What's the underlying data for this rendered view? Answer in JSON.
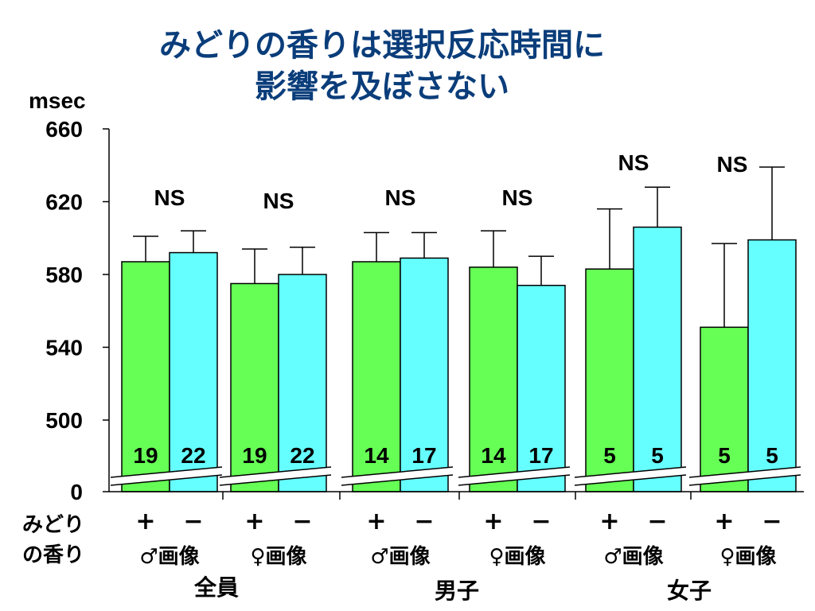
{
  "title_lines": [
    "みどりの香りは選択反応時間に",
    "影響を及ぼさない"
  ],
  "chart_data": {
    "type": "bar",
    "ylabel": "msec",
    "ylim": [
      500,
      660
    ],
    "axis_break": true,
    "y_ticks": [
      "660",
      "620",
      "580",
      "540",
      "500",
      "0"
    ],
    "row_label_line1": "みどり",
    "row_label_line2": "の香り",
    "colors": {
      "plus": "#66ff55",
      "minus": "#66ffff",
      "title": "#0a3d7a"
    },
    "groups": [
      {
        "image": "♂画像",
        "overall": "全員",
        "bars": [
          {
            "scent": "+",
            "value": 587,
            "err_top": 601,
            "n": "19"
          },
          {
            "scent": "−",
            "value": 592,
            "err_top": 604,
            "n": "22"
          }
        ],
        "sig": "NS"
      },
      {
        "image": "♀画像",
        "overall": "",
        "bars": [
          {
            "scent": "+",
            "value": 575,
            "err_top": 594,
            "n": "19"
          },
          {
            "scent": "−",
            "value": 580,
            "err_top": 595,
            "n": "22"
          }
        ],
        "sig": "NS"
      },
      {
        "image": "♂画像",
        "overall": "",
        "bars": [
          {
            "scent": "+",
            "value": 587,
            "err_top": 603,
            "n": "14"
          },
          {
            "scent": "−",
            "value": 589,
            "err_top": 603,
            "n": "17"
          }
        ],
        "sig": "NS"
      },
      {
        "image": "♀画像",
        "overall": "男子",
        "bars": [
          {
            "scent": "+",
            "value": 584,
            "err_top": 604,
            "n": "14"
          },
          {
            "scent": "−",
            "value": 574,
            "err_top": 590,
            "n": "17"
          }
        ],
        "sig": "NS"
      },
      {
        "image": "♂画像",
        "overall": "",
        "bars": [
          {
            "scent": "+",
            "value": 583,
            "err_top": 616,
            "n": "5"
          },
          {
            "scent": "−",
            "value": 606,
            "err_top": 628,
            "n": "5"
          }
        ],
        "sig": "NS"
      },
      {
        "image": "♀画像",
        "overall": "女子",
        "bars": [
          {
            "scent": "+",
            "value": 551,
            "err_top": 597,
            "n": "5"
          },
          {
            "scent": "−",
            "value": 599,
            "err_top": 639,
            "n": "5"
          }
        ],
        "sig": "NS"
      }
    ]
  }
}
